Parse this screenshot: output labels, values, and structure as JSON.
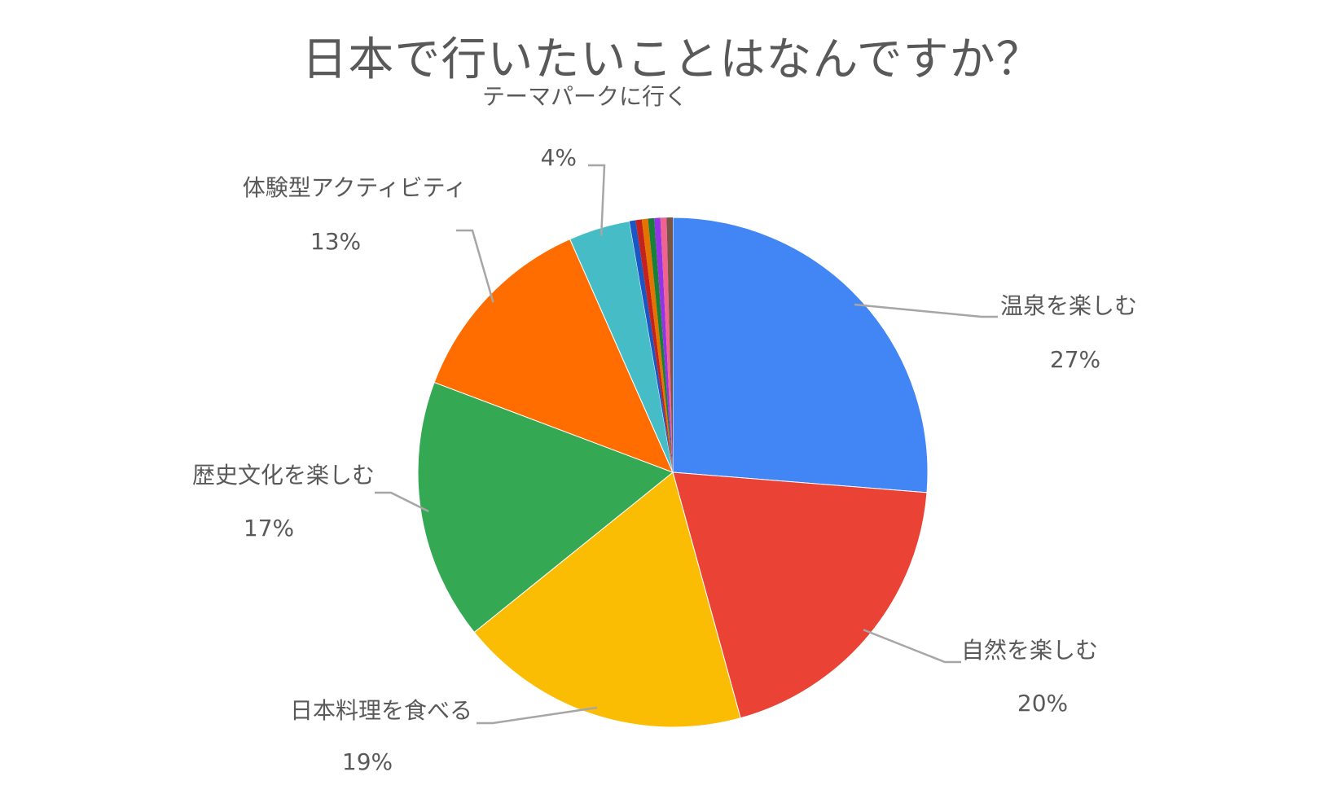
{
  "chart_data": {
    "type": "pie",
    "title": "日本で行いたいことはなんですか？",
    "slices": [
      {
        "label": "温泉を楽しむ",
        "value": 27,
        "pct": "27%",
        "color": "#4285F4"
      },
      {
        "label": "自然を楽しむ",
        "value": 20,
        "pct": "20%",
        "color": "#EA4335"
      },
      {
        "label": "日本料理を食べる",
        "value": 19,
        "pct": "19%",
        "color": "#FBBC04"
      },
      {
        "label": "歴史文化を楽しむ",
        "value": 17,
        "pct": "17%",
        "color": "#34A853"
      },
      {
        "label": "体験型アクティビティ",
        "value": 13,
        "pct": "13%",
        "color": "#FF6D01"
      },
      {
        "label": "テーマパークに行く",
        "value": 4,
        "pct": "4%",
        "color": "#46BDC6"
      }
    ],
    "minor_slice_colors": [
      "#1A56C4",
      "#C5221F",
      "#E37400",
      "#188038",
      "#9334E6",
      "#F06292",
      "#795548"
    ],
    "leader_line_color": "#A6A6A6"
  }
}
